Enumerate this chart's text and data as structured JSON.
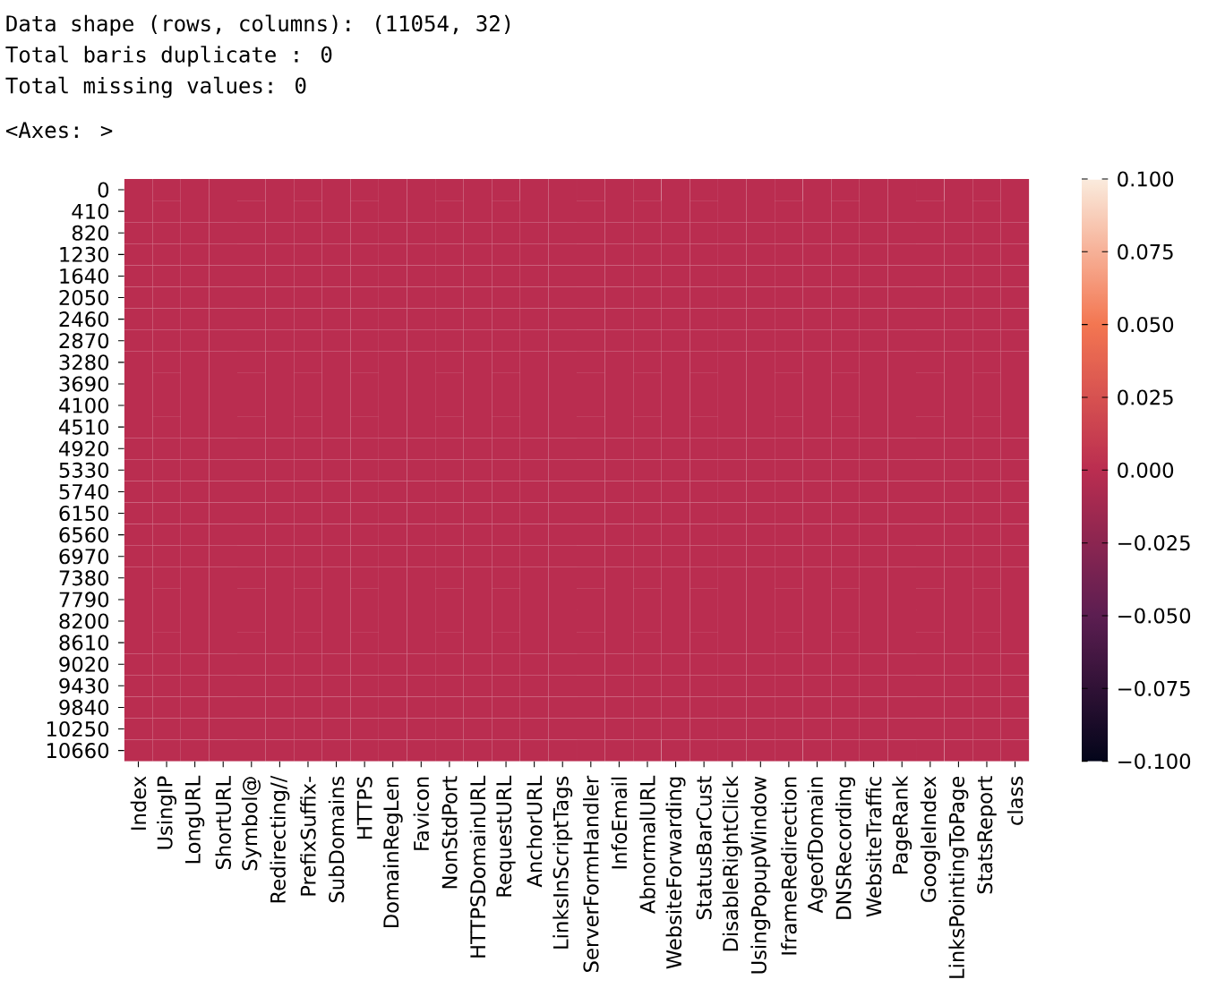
{
  "chart_data": {
    "type": "heatmap",
    "annotations": [
      "Data shape (rows, columns): (11054, 32)",
      "Total baris duplicate : 0",
      "Total missing values: 0",
      "<Axes: >"
    ],
    "categories": [
      "Index",
      "UsingIP",
      "LongURL",
      "ShortURL",
      "Symbol@",
      "Redirecting//",
      "PrefixSuffix-",
      "SubDomains",
      "HTTPS",
      "DomainRegLen",
      "Favicon",
      "NonStdPort",
      "HTTPSDomainURL",
      "RequestURL",
      "AnchorURL",
      "LinksInScriptTags",
      "ServerFormHandler",
      "InfoEmail",
      "AbnormalURL",
      "WebsiteForwarding",
      "StatusBarCust",
      "DisableRightClick",
      "UsingPopupWindow",
      "IframeRedirection",
      "AgeofDomain",
      "DNSRecording",
      "WebsiteTraffic",
      "PageRank",
      "GoogleIndex",
      "LinksPointingToPage",
      "StatsReport",
      "class"
    ],
    "y_categories": [
      "0",
      "410",
      "820",
      "1230",
      "1640",
      "2050",
      "2460",
      "2870",
      "3280",
      "3690",
      "4100",
      "4510",
      "4920",
      "5330",
      "5740",
      "6150",
      "6560",
      "6970",
      "7380",
      "7790",
      "8200",
      "8610",
      "9020",
      "9430",
      "9840",
      "10250",
      "10660"
    ],
    "cells": [
      [
        0,
        0,
        0,
        0,
        0,
        0,
        0,
        0,
        0,
        0,
        0,
        0,
        0,
        0,
        0,
        0,
        0,
        0,
        0,
        0,
        0,
        0,
        0,
        0,
        0,
        0,
        0,
        0,
        0,
        0,
        0,
        0
      ],
      [
        0,
        0,
        0,
        0,
        0,
        0,
        0,
        0,
        0,
        0,
        0,
        0,
        0,
        0,
        0,
        0,
        0,
        0,
        0,
        0,
        0,
        0,
        0,
        0,
        0,
        0,
        0,
        0,
        0,
        0,
        0,
        0
      ],
      [
        0,
        0,
        0,
        0,
        0,
        0,
        0,
        0,
        0,
        0,
        0,
        0,
        0,
        0,
        0,
        0,
        0,
        0,
        0,
        0,
        0,
        0,
        0,
        0,
        0,
        0,
        0,
        0,
        0,
        0,
        0,
        0
      ],
      [
        0,
        0,
        0,
        0,
        0,
        0,
        0,
        0,
        0,
        0,
        0,
        0,
        0,
        0,
        0,
        0,
        0,
        0,
        0,
        0,
        0,
        0,
        0,
        0,
        0,
        0,
        0,
        0,
        0,
        0,
        0,
        0
      ],
      [
        0,
        0,
        0,
        0,
        0,
        0,
        0,
        0,
        0,
        0,
        0,
        0,
        0,
        0,
        0,
        0,
        0,
        0,
        0,
        0,
        0,
        0,
        0,
        0,
        0,
        0,
        0,
        0,
        0,
        0,
        0,
        0
      ],
      [
        0,
        0,
        0,
        0,
        0,
        0,
        0,
        0,
        0,
        0,
        0,
        0,
        0,
        0,
        0,
        0,
        0,
        0,
        0,
        0,
        0,
        0,
        0,
        0,
        0,
        0,
        0,
        0,
        0,
        0,
        0,
        0
      ],
      [
        0,
        0,
        0,
        0,
        0,
        0,
        0,
        0,
        0,
        0,
        0,
        0,
        0,
        0,
        0,
        0,
        0,
        0,
        0,
        0,
        0,
        0,
        0,
        0,
        0,
        0,
        0,
        0,
        0,
        0,
        0,
        0
      ],
      [
        0,
        0,
        0,
        0,
        0,
        0,
        0,
        0,
        0,
        0,
        0,
        0,
        0,
        0,
        0,
        0,
        0,
        0,
        0,
        0,
        0,
        0,
        0,
        0,
        0,
        0,
        0,
        0,
        0,
        0,
        0,
        0
      ],
      [
        0,
        0,
        0,
        0,
        0,
        0,
        0,
        0,
        0,
        0,
        0,
        0,
        0,
        0,
        0,
        0,
        0,
        0,
        0,
        0,
        0,
        0,
        0,
        0,
        0,
        0,
        0,
        0,
        0,
        0,
        0,
        0
      ],
      [
        0,
        0,
        0,
        0,
        0,
        0,
        0,
        0,
        0,
        0,
        0,
        0,
        0,
        0,
        0,
        0,
        0,
        0,
        0,
        0,
        0,
        0,
        0,
        0,
        0,
        0,
        0,
        0,
        0,
        0,
        0,
        0
      ],
      [
        0,
        0,
        0,
        0,
        0,
        0,
        0,
        0,
        0,
        0,
        0,
        0,
        0,
        0,
        0,
        0,
        0,
        0,
        0,
        0,
        0,
        0,
        0,
        0,
        0,
        0,
        0,
        0,
        0,
        0,
        0,
        0
      ],
      [
        0,
        0,
        0,
        0,
        0,
        0,
        0,
        0,
        0,
        0,
        0,
        0,
        0,
        0,
        0,
        0,
        0,
        0,
        0,
        0,
        0,
        0,
        0,
        0,
        0,
        0,
        0,
        0,
        0,
        0,
        0,
        0
      ],
      [
        0,
        0,
        0,
        0,
        0,
        0,
        0,
        0,
        0,
        0,
        0,
        0,
        0,
        0,
        0,
        0,
        0,
        0,
        0,
        0,
        0,
        0,
        0,
        0,
        0,
        0,
        0,
        0,
        0,
        0,
        0,
        0
      ],
      [
        0,
        0,
        0,
        0,
        0,
        0,
        0,
        0,
        0,
        0,
        0,
        0,
        0,
        0,
        0,
        0,
        0,
        0,
        0,
        0,
        0,
        0,
        0,
        0,
        0,
        0,
        0,
        0,
        0,
        0,
        0,
        0
      ],
      [
        0,
        0,
        0,
        0,
        0,
        0,
        0,
        0,
        0,
        0,
        0,
        0,
        0,
        0,
        0,
        0,
        0,
        0,
        0,
        0,
        0,
        0,
        0,
        0,
        0,
        0,
        0,
        0,
        0,
        0,
        0,
        0
      ],
      [
        0,
        0,
        0,
        0,
        0,
        0,
        0,
        0,
        0,
        0,
        0,
        0,
        0,
        0,
        0,
        0,
        0,
        0,
        0,
        0,
        0,
        0,
        0,
        0,
        0,
        0,
        0,
        0,
        0,
        0,
        0,
        0
      ],
      [
        0,
        0,
        0,
        0,
        0,
        0,
        0,
        0,
        0,
        0,
        0,
        0,
        0,
        0,
        0,
        0,
        0,
        0,
        0,
        0,
        0,
        0,
        0,
        0,
        0,
        0,
        0,
        0,
        0,
        0,
        0,
        0
      ],
      [
        0,
        0,
        0,
        0,
        0,
        0,
        0,
        0,
        0,
        0,
        0,
        0,
        0,
        0,
        0,
        0,
        0,
        0,
        0,
        0,
        0,
        0,
        0,
        0,
        0,
        0,
        0,
        0,
        0,
        0,
        0,
        0
      ],
      [
        0,
        0,
        0,
        0,
        0,
        0,
        0,
        0,
        0,
        0,
        0,
        0,
        0,
        0,
        0,
        0,
        0,
        0,
        0,
        0,
        0,
        0,
        0,
        0,
        0,
        0,
        0,
        0,
        0,
        0,
        0,
        0
      ],
      [
        0,
        0,
        0,
        0,
        0,
        0,
        0,
        0,
        0,
        0,
        0,
        0,
        0,
        0,
        0,
        0,
        0,
        0,
        0,
        0,
        0,
        0,
        0,
        0,
        0,
        0,
        0,
        0,
        0,
        0,
        0,
        0
      ],
      [
        0,
        0,
        0,
        0,
        0,
        0,
        0,
        0,
        0,
        0,
        0,
        0,
        0,
        0,
        0,
        0,
        0,
        0,
        0,
        0,
        0,
        0,
        0,
        0,
        0,
        0,
        0,
        0,
        0,
        0,
        0,
        0
      ],
      [
        0,
        0,
        0,
        0,
        0,
        0,
        0,
        0,
        0,
        0,
        0,
        0,
        0,
        0,
        0,
        0,
        0,
        0,
        0,
        0,
        0,
        0,
        0,
        0,
        0,
        0,
        0,
        0,
        0,
        0,
        0,
        0
      ],
      [
        0,
        0,
        0,
        0,
        0,
        0,
        0,
        0,
        0,
        0,
        0,
        0,
        0,
        0,
        0,
        0,
        0,
        0,
        0,
        0,
        0,
        0,
        0,
        0,
        0,
        0,
        0,
        0,
        0,
        0,
        0,
        0
      ],
      [
        0,
        0,
        0,
        0,
        0,
        0,
        0,
        0,
        0,
        0,
        0,
        0,
        0,
        0,
        0,
        0,
        0,
        0,
        0,
        0,
        0,
        0,
        0,
        0,
        0,
        0,
        0,
        0,
        0,
        0,
        0,
        0
      ],
      [
        0,
        0,
        0,
        0,
        0,
        0,
        0,
        0,
        0,
        0,
        0,
        0,
        0,
        0,
        0,
        0,
        0,
        0,
        0,
        0,
        0,
        0,
        0,
        0,
        0,
        0,
        0,
        0,
        0,
        0,
        0,
        0
      ],
      [
        0,
        0,
        0,
        0,
        0,
        0,
        0,
        0,
        0,
        0,
        0,
        0,
        0,
        0,
        0,
        0,
        0,
        0,
        0,
        0,
        0,
        0,
        0,
        0,
        0,
        0,
        0,
        0,
        0,
        0,
        0,
        0
      ],
      [
        0,
        0,
        0,
        0,
        0,
        0,
        0,
        0,
        0,
        0,
        0,
        0,
        0,
        0,
        0,
        0,
        0,
        0,
        0,
        0,
        0,
        0,
        0,
        0,
        0,
        0,
        0,
        0,
        0,
        0,
        0,
        0
      ]
    ],
    "clim": [
      -0.1,
      0.1
    ],
    "cticks": [
      {
        "value": -0.1,
        "label": "−0.100"
      },
      {
        "value": -0.075,
        "label": "−0.075"
      },
      {
        "value": -0.05,
        "label": "−0.050"
      },
      {
        "value": -0.025,
        "label": "−0.025"
      },
      {
        "value": 0,
        "label": "0.000"
      },
      {
        "value": 0.025,
        "label": "0.025"
      },
      {
        "value": 0.05,
        "label": "0.050"
      },
      {
        "value": 0.075,
        "label": "0.075"
      },
      {
        "value": 0.1,
        "label": "0.100"
      }
    ]
  }
}
